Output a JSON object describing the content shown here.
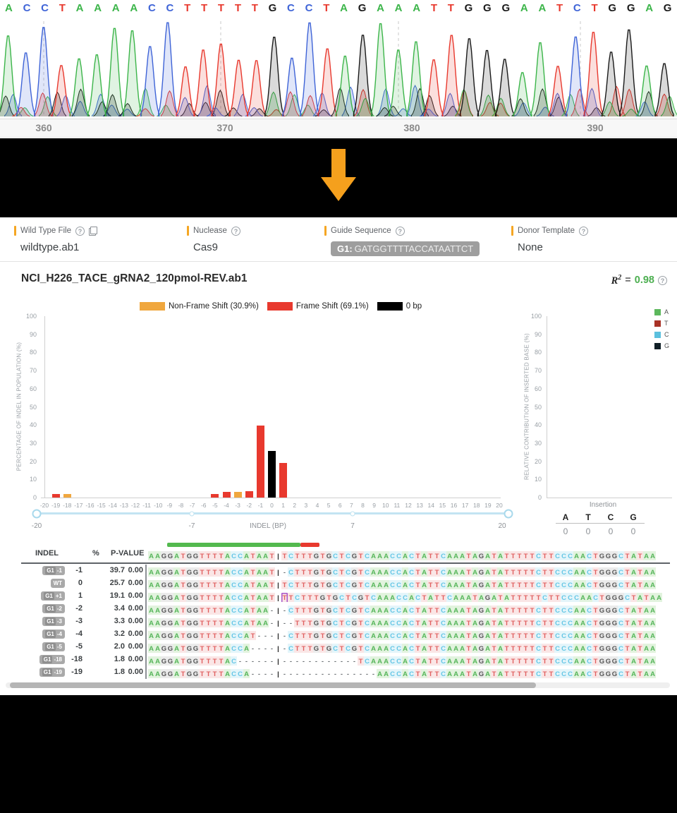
{
  "chromatogram": {
    "bases": "ACCTAAAACCTTTTTGCCTAGAAATTGGGAATCTGGAG",
    "base_colors": {
      "A": "#3CB54A",
      "C": "#3F64D7",
      "T": "#E8392E",
      "G": "#1A1A1A"
    },
    "axis_ticks": [
      {
        "label": "360",
        "x": 62
      },
      {
        "label": "370",
        "x": 319
      },
      {
        "label": "380",
        "x": 584
      },
      {
        "label": "390",
        "x": 844
      }
    ],
    "dashed_guides_x": [
      62,
      313,
      565,
      823
    ]
  },
  "transition_arrow": {
    "color": "#F5A01D"
  },
  "icons": {
    "help_glyph": "?"
  },
  "info_bar": {
    "accent_color": "#F5A623",
    "fields": [
      {
        "label": "Wild Type File",
        "value": "wildtype.ab1",
        "icons": [
          "help",
          "copy"
        ]
      },
      {
        "label": "Nuclease",
        "value": "Cas9",
        "icons": [
          "help"
        ]
      },
      {
        "label": "Guide Sequence",
        "badge_prefix": "G1:",
        "badge_value": "GATGGTTTTACCATAATTCT",
        "icons": [
          "help"
        ]
      },
      {
        "label": "Donor Template",
        "value": "None",
        "icons": [
          "help"
        ]
      }
    ]
  },
  "sample": {
    "title": "NCI_H226_TACE_gRNA2_120pmol-REV.ab1",
    "r2_value": "0.98",
    "r2_color": "#4CAF50"
  },
  "chart_data": [
    {
      "type": "bar",
      "title": "Indel size distribution",
      "xlabel": "INDEL (BP)",
      "ylabel": "PERCENTAGE OF INDEL IN POPULATION (%)",
      "xlim": [
        -20,
        20
      ],
      "ylim": [
        0,
        100
      ],
      "y_ticks": [
        0,
        10,
        20,
        30,
        40,
        50,
        60,
        70,
        80,
        90,
        100
      ],
      "grid": false,
      "legend_position": "top",
      "bars": [
        {
          "x": -19,
          "value": 1.8,
          "class": "frame"
        },
        {
          "x": -18,
          "value": 1.8,
          "class": "nonframe"
        },
        {
          "x": -5,
          "value": 2.0,
          "class": "frame"
        },
        {
          "x": -4,
          "value": 3.2,
          "class": "frame"
        },
        {
          "x": -3,
          "value": 3.3,
          "class": "nonframe"
        },
        {
          "x": -2,
          "value": 3.4,
          "class": "frame"
        },
        {
          "x": -1,
          "value": 39.7,
          "class": "frame"
        },
        {
          "x": 0,
          "value": 25.7,
          "class": "zero"
        },
        {
          "x": 1,
          "value": 19.1,
          "class": "frame"
        }
      ],
      "colors": {
        "nonframe": "#F0A73E",
        "frame": "#E8392E",
        "zero": "#000000"
      },
      "legend": [
        {
          "label": "Non-Frame Shift (30.9%)",
          "key": "nonframe"
        },
        {
          "label": "Frame Shift (69.1%)",
          "key": "frame"
        },
        {
          "label": "0 bp",
          "key": "zero"
        }
      ],
      "slider": {
        "min_label": "-20",
        "max_label": "20",
        "dot_labels": [
          "-7",
          "7"
        ],
        "axis_label": "INDEL (BP)"
      }
    },
    {
      "type": "bar",
      "title": "Inserted base contribution",
      "ylabel": "RELATIVE CONTRIBUTION OF INSERTED BASE (%)",
      "ylim": [
        0,
        100
      ],
      "y_ticks": [
        0,
        10,
        20,
        30,
        40,
        50,
        60,
        70,
        80,
        90,
        100
      ],
      "categories": [
        "A",
        "T",
        "C",
        "G"
      ],
      "values": [
        0,
        0,
        0,
        0
      ],
      "footer_label": "Insertion",
      "legend_position": "right",
      "legend": [
        {
          "label": "A",
          "color": "#5CB85C"
        },
        {
          "label": "T",
          "color": "#A93226"
        },
        {
          "label": "C",
          "color": "#5BC0DE"
        },
        {
          "label": "G",
          "color": "#102027"
        }
      ]
    }
  ],
  "alignment": {
    "headers": {
      "indel": "INDEL",
      "pct": "%",
      "pval": "P-VALUE"
    },
    "reference_seq": "AAGGATGGTTTTACCATAAT|TCTTTGTGCTCGTCAAACCACTATTCAAATAGATATTTTTCTTCCCAACTGGGCTATAA",
    "guide_bar": {
      "green_start_token": 3,
      "green_token_len": 21,
      "red_token_len": 3,
      "green_color": "#53B94E",
      "red_color": "#E8392E"
    },
    "base_text_colors": {
      "A": "#55B559",
      "T": "#E06060",
      "C": "#65C6E5",
      "G": "#555555"
    },
    "base_bg_colors": {
      "A": "#E2F3DE",
      "T": "#FAE6E6",
      "C": "#E4F5FA",
      "G": "#EBEBEB"
    },
    "insertion_box_color": "#A855C8",
    "rows": [
      {
        "badge_prefix": "G1",
        "badge_label": "-1",
        "indel": "-1",
        "pct": "39.7",
        "pval": "0.00",
        "insertion": false,
        "seq": "AAGGATGGTTTTACCATAAT|-CTTTGTGCTCGTCAAACCACTATTCAAATAGATATTTTTCTTCCCAACTGGGCTATAA"
      },
      {
        "badge_prefix": "",
        "badge_label": "WT",
        "indel": "0",
        "pct": "25.7",
        "pval": "0.00",
        "insertion": false,
        "seq": "AAGGATGGTTTTACCATAAT|TCTTTGTGCTCGTCAAACCACTATTCAAATAGATATTTTTCTTCCCAACTGGGCTATAA"
      },
      {
        "badge_prefix": "G1",
        "badge_label": "+1",
        "indel": "1",
        "pct": "19.1",
        "pval": "0.00",
        "insertion": true,
        "seq": "AAGGATGGTTTTACCATAAT|TTCTTTGTGCTCGTCAAACCACTATTCAAATAGATATTTTTCTTCCCAACTGGGCTATAA"
      },
      {
        "badge_prefix": "G1",
        "badge_label": "-2",
        "indel": "-2",
        "pct": "3.4",
        "pval": "0.00",
        "insertion": false,
        "seq": "AAGGATGGTTTTACCATAA-|-CTTTGTGCTCGTCAAACCACTATTCAAATAGATATTTTTCTTCCCAACTGGGCTATAA"
      },
      {
        "badge_prefix": "G1",
        "badge_label": "-3",
        "indel": "-3",
        "pct": "3.3",
        "pval": "0.00",
        "insertion": false,
        "seq": "AAGGATGGTTTTACCATAA-|--TTTGTGCTCGTCAAACCACTATTCAAATAGATATTTTTCTTCCCAACTGGGCTATAA"
      },
      {
        "badge_prefix": "G1",
        "badge_label": "-4",
        "indel": "-4",
        "pct": "3.2",
        "pval": "0.00",
        "insertion": false,
        "seq": "AAGGATGGTTTTACCAT---|-CTTTGTGCTCGTCAAACCACTATTCAAATAGATATTTTTCTTCCCAACTGGGCTATAA"
      },
      {
        "badge_prefix": "G1",
        "badge_label": "-5",
        "indel": "-5",
        "pct": "2.0",
        "pval": "0.00",
        "insertion": false,
        "seq": "AAGGATGGTTTTACCA----|-CTTTGTGCTCGTCAAACCACTATTCAAATAGATATTTTTCTTCCCAACTGGGCTATAA"
      },
      {
        "badge_prefix": "G1",
        "badge_label": "-18",
        "indel": "-18",
        "pct": "1.8",
        "pval": "0.00",
        "insertion": false,
        "seq": "AAGGATGGTTTTAC------|------------TCAAACCACTATTCAAATAGATATTTTTCTTCCCAACTGGGCTATAA"
      },
      {
        "badge_prefix": "G1",
        "badge_label": "-19",
        "indel": "-19",
        "pct": "1.8",
        "pval": "0.00",
        "insertion": false,
        "seq": "AAGGATGGTTTTACCA----|---------------AACCACTATTCAAATAGATATTTTTCTTCCCAACTGGGCTATAA"
      }
    ]
  }
}
